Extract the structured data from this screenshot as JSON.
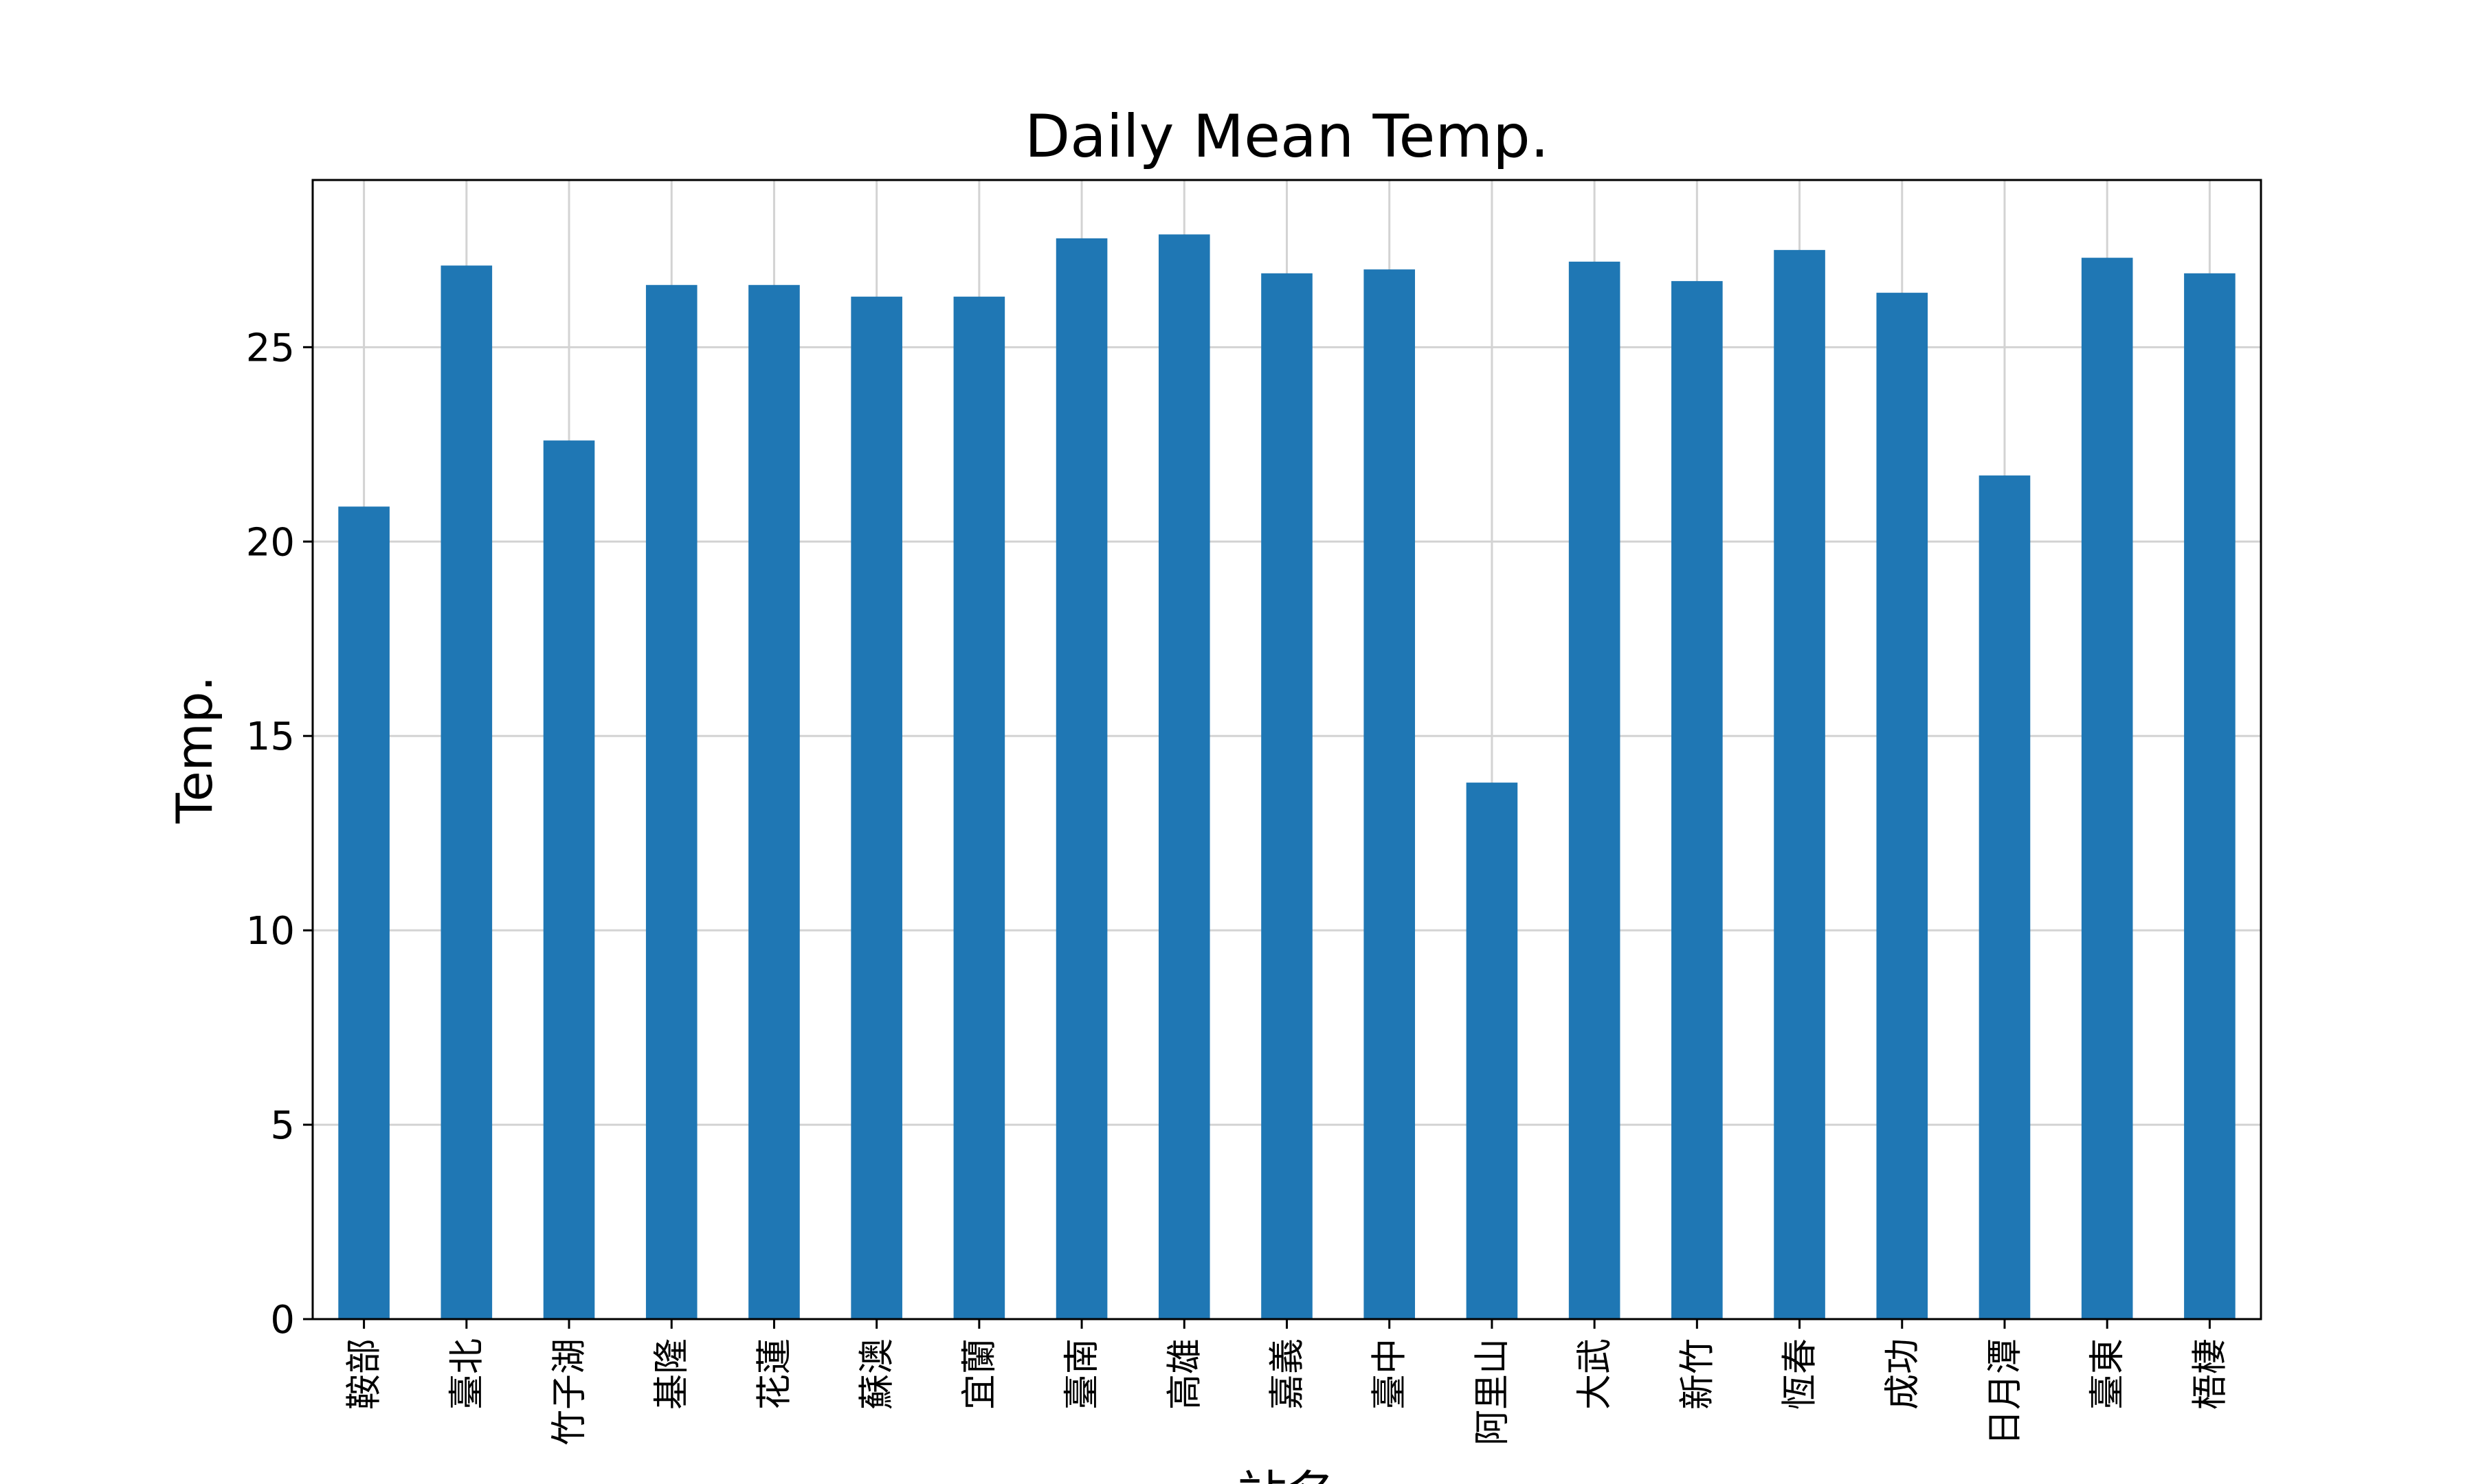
{
  "chart_data": {
    "type": "bar",
    "title": "Daily Mean Temp.",
    "xlabel": "站名",
    "ylabel": "Temp.",
    "categories": [
      "鞍部",
      "臺北",
      "竹子湖",
      "基隆",
      "花蓮",
      "蘇澳",
      "宜蘭",
      "臺南",
      "高雄",
      "嘉義",
      "臺中",
      "阿里山",
      "大武",
      "新竹",
      "恆春",
      "成功",
      "日月潭",
      "臺東",
      "梧棲"
    ],
    "values": [
      20.9,
      27.1,
      22.6,
      26.6,
      26.6,
      26.3,
      26.3,
      27.8,
      27.9,
      26.9,
      27.0,
      13.8,
      27.2,
      26.7,
      27.5,
      26.4,
      21.7,
      27.3,
      26.9
    ],
    "ylim": [
      0,
      29.3
    ],
    "yticks": [
      0,
      5,
      10,
      15,
      20,
      25
    ],
    "grid": true,
    "bar_color": "#1f77b4"
  }
}
